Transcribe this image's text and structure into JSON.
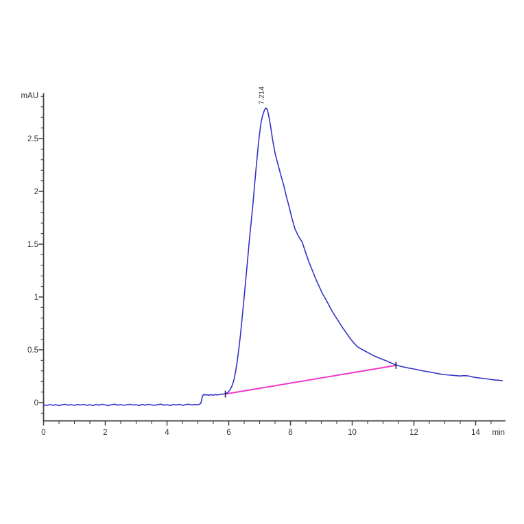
{
  "chart_data": {
    "type": "line",
    "title": "",
    "xlabel": "min",
    "ylabel": "mAU",
    "xlim": [
      0,
      15
    ],
    "ylim": [
      -0.18,
      2.93
    ],
    "grid": false,
    "legend": "none",
    "x_major_ticks": [
      0,
      2,
      4,
      6,
      8,
      10,
      12,
      14
    ],
    "x_tick_labels": [
      "0",
      "2",
      "4",
      "6",
      "8",
      "10",
      "12",
      "14"
    ],
    "x_minor_step": 0.5,
    "y_major_ticks": [
      0,
      0.5,
      1,
      1.5,
      2,
      2.5
    ],
    "y_tick_labels": [
      "0",
      "0.5",
      "1",
      "1.5",
      "2",
      "2.5"
    ],
    "y_minor_step": 0.1,
    "peak": {
      "label": "7.214",
      "retention_time_min": 7.214,
      "apex_mAU": 2.79
    },
    "series": [
      {
        "name": "uv-absorbance-trace",
        "color": "#3232c8",
        "points": [
          [
            0,
            -0.022
          ],
          [
            0.1,
            -0.026
          ],
          [
            0.2,
            -0.019
          ],
          [
            0.3,
            -0.025
          ],
          [
            0.4,
            -0.02
          ],
          [
            0.5,
            -0.028
          ],
          [
            0.6,
            -0.021
          ],
          [
            0.7,
            -0.016
          ],
          [
            0.8,
            -0.024
          ],
          [
            0.9,
            -0.02
          ],
          [
            1.0,
            -0.026
          ],
          [
            1.1,
            -0.018
          ],
          [
            1.2,
            -0.023
          ],
          [
            1.3,
            -0.017
          ],
          [
            1.4,
            -0.025
          ],
          [
            1.5,
            -0.02
          ],
          [
            1.6,
            -0.027
          ],
          [
            1.7,
            -0.019
          ],
          [
            1.8,
            -0.024
          ],
          [
            1.9,
            -0.016
          ],
          [
            2.0,
            -0.022
          ],
          [
            2.1,
            -0.028
          ],
          [
            2.2,
            -0.02
          ],
          [
            2.3,
            -0.015
          ],
          [
            2.4,
            -0.024
          ],
          [
            2.5,
            -0.019
          ],
          [
            2.6,
            -0.026
          ],
          [
            2.7,
            -0.02
          ],
          [
            2.8,
            -0.016
          ],
          [
            2.9,
            -0.023
          ],
          [
            3.0,
            -0.02
          ],
          [
            3.1,
            -0.027
          ],
          [
            3.2,
            -0.018
          ],
          [
            3.3,
            -0.024
          ],
          [
            3.4,
            -0.016
          ],
          [
            3.5,
            -0.022
          ],
          [
            3.6,
            -0.026
          ],
          [
            3.7,
            -0.019
          ],
          [
            3.8,
            -0.015
          ],
          [
            3.9,
            -0.024
          ],
          [
            4.0,
            -0.02
          ],
          [
            4.1,
            -0.027
          ],
          [
            4.2,
            -0.018
          ],
          [
            4.3,
            -0.023
          ],
          [
            4.4,
            -0.016
          ],
          [
            4.5,
            -0.025
          ],
          [
            4.6,
            -0.02
          ],
          [
            4.7,
            -0.015
          ],
          [
            4.8,
            -0.022
          ],
          [
            4.9,
            -0.018
          ],
          [
            5.0,
            -0.021
          ],
          [
            5.06,
            -0.015
          ],
          [
            5.1,
            -0.005
          ],
          [
            5.13,
            0.04
          ],
          [
            5.16,
            0.068
          ],
          [
            5.19,
            0.078
          ],
          [
            5.22,
            0.072
          ],
          [
            5.28,
            0.075
          ],
          [
            5.35,
            0.07
          ],
          [
            5.42,
            0.074
          ],
          [
            5.5,
            0.071
          ],
          [
            5.57,
            0.076
          ],
          [
            5.64,
            0.072
          ],
          [
            5.71,
            0.077
          ],
          [
            5.78,
            0.079
          ],
          [
            5.84,
            0.082
          ],
          [
            5.89,
            0.085
          ],
          [
            5.95,
            0.092
          ],
          [
            6.0,
            0.105
          ],
          [
            6.05,
            0.125
          ],
          [
            6.11,
            0.16
          ],
          [
            6.17,
            0.215
          ],
          [
            6.22,
            0.29
          ],
          [
            6.28,
            0.4
          ],
          [
            6.33,
            0.52
          ],
          [
            6.38,
            0.64
          ],
          [
            6.44,
            0.82
          ],
          [
            6.5,
            1.0
          ],
          [
            6.56,
            1.19
          ],
          [
            6.62,
            1.38
          ],
          [
            6.67,
            1.54
          ],
          [
            6.73,
            1.72
          ],
          [
            6.79,
            1.9
          ],
          [
            6.84,
            2.07
          ],
          [
            6.9,
            2.26
          ],
          [
            6.95,
            2.42
          ],
          [
            7.0,
            2.55
          ],
          [
            7.05,
            2.66
          ],
          [
            7.1,
            2.72
          ],
          [
            7.15,
            2.765
          ],
          [
            7.2,
            2.79
          ],
          [
            7.25,
            2.775
          ],
          [
            7.3,
            2.71
          ],
          [
            7.36,
            2.61
          ],
          [
            7.42,
            2.49
          ],
          [
            7.51,
            2.35
          ],
          [
            7.6,
            2.25
          ],
          [
            7.69,
            2.15
          ],
          [
            7.78,
            2.06
          ],
          [
            7.87,
            1.95
          ],
          [
            7.96,
            1.85
          ],
          [
            8.05,
            1.74
          ],
          [
            8.15,
            1.64
          ],
          [
            8.27,
            1.57
          ],
          [
            8.38,
            1.52
          ],
          [
            8.49,
            1.42
          ],
          [
            8.6,
            1.33
          ],
          [
            8.71,
            1.25
          ],
          [
            8.82,
            1.17
          ],
          [
            8.93,
            1.1
          ],
          [
            9.04,
            1.03
          ],
          [
            9.16,
            0.97
          ],
          [
            9.27,
            0.91
          ],
          [
            9.38,
            0.85
          ],
          [
            9.49,
            0.8
          ],
          [
            9.6,
            0.75
          ],
          [
            9.71,
            0.7
          ],
          [
            9.82,
            0.655
          ],
          [
            9.93,
            0.61
          ],
          [
            10.04,
            0.57
          ],
          [
            10.16,
            0.53
          ],
          [
            10.28,
            0.51
          ],
          [
            10.4,
            0.49
          ],
          [
            10.53,
            0.47
          ],
          [
            10.65,
            0.45
          ],
          [
            10.77,
            0.435
          ],
          [
            10.89,
            0.42
          ],
          [
            11.02,
            0.405
          ],
          [
            11.15,
            0.39
          ],
          [
            11.28,
            0.373
          ],
          [
            11.42,
            0.357
          ],
          [
            11.55,
            0.345
          ],
          [
            11.7,
            0.335
          ],
          [
            11.85,
            0.326
          ],
          [
            12.0,
            0.318
          ],
          [
            12.15,
            0.309
          ],
          [
            12.3,
            0.3
          ],
          [
            12.45,
            0.292
          ],
          [
            12.6,
            0.285
          ],
          [
            12.75,
            0.276
          ],
          [
            12.9,
            0.268
          ],
          [
            13.05,
            0.263
          ],
          [
            13.2,
            0.26
          ],
          [
            13.35,
            0.255
          ],
          [
            13.5,
            0.252
          ],
          [
            13.62,
            0.255
          ],
          [
            13.75,
            0.253
          ],
          [
            13.88,
            0.244
          ],
          [
            14.0,
            0.238
          ],
          [
            14.15,
            0.232
          ],
          [
            14.3,
            0.227
          ],
          [
            14.45,
            0.221
          ],
          [
            14.6,
            0.215
          ],
          [
            14.75,
            0.212
          ],
          [
            14.87,
            0.208
          ]
        ]
      },
      {
        "name": "integration-baseline",
        "color": "#f238c6",
        "points": [
          [
            5.89,
            0.081
          ],
          [
            11.42,
            0.352
          ]
        ]
      }
    ],
    "integration_marks": [
      [
        5.89,
        0.081
      ],
      [
        11.42,
        0.352
      ]
    ]
  },
  "colors": {
    "trace": "#3232c8",
    "integration_line": "#f238c6",
    "integration_tick": "#1b1b55",
    "axis": "#3f3f3f",
    "tick_label": "#333333",
    "background": "#ffffff"
  }
}
